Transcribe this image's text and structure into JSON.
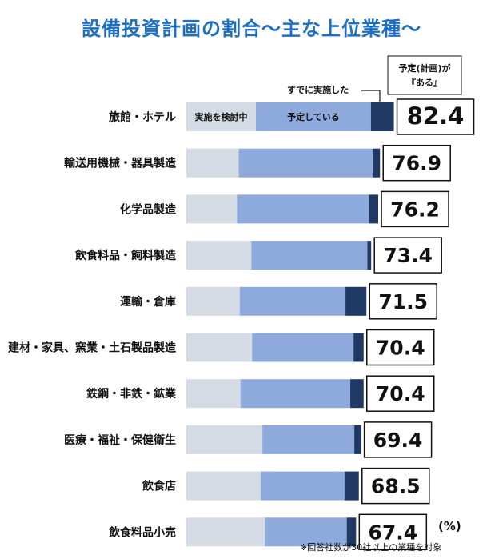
{
  "title": "設備投資計画の割合〜主な上位業種〜",
  "chart_data": {
    "type": "bar",
    "orientation": "horizontal",
    "stacked": true,
    "title": "設備投資計画の割合〜主な上位業種〜",
    "unit": "(%)",
    "categories": [
      "旅館・ホテル",
      "輸送用機械・器具製造",
      "化学品製造",
      "飲食料品・飼料製造",
      "運輸・倉庫",
      "建材・家具、窯業・土石製品製造",
      "鉄鋼・非鉄・鉱業",
      "医療・福祉・保健衛生",
      "飲食店",
      "飲食料品小売"
    ],
    "series": [
      {
        "name": "実施を検討中",
        "color": "#d5dbe4",
        "values": [
          27.6,
          20.8,
          20.1,
          25.8,
          21.2,
          26.1,
          21.5,
          30.2,
          29.6,
          31.2
        ]
      },
      {
        "name": "予定している",
        "color": "#8eaadc",
        "values": [
          45.7,
          53.2,
          52.4,
          46.1,
          42.0,
          40.3,
          43.6,
          36.5,
          33.2,
          32.5
        ]
      },
      {
        "name": "すでに実施した",
        "color": "#1f3864",
        "values": [
          9.1,
          2.9,
          3.7,
          1.5,
          8.3,
          4.0,
          5.3,
          2.7,
          5.7,
          3.7
        ]
      }
    ],
    "totals": [
      82.4,
      76.9,
      76.2,
      73.4,
      71.5,
      70.4,
      70.4,
      69.4,
      68.5,
      67.4
    ],
    "totals_label": "予定(計画)が『ある』",
    "xlim": [
      0,
      100
    ],
    "grid": false,
    "legend": "inline labels on first bar"
  },
  "legend_labels": {
    "considering": "実施を検討中",
    "planned": "予定している",
    "done": "すでに実施した",
    "total_line1": "予定(計画)が",
    "total_line2": "『ある』"
  },
  "unit_label": "(%)",
  "footnote": "※回答社数が30社以上の業種を対象"
}
